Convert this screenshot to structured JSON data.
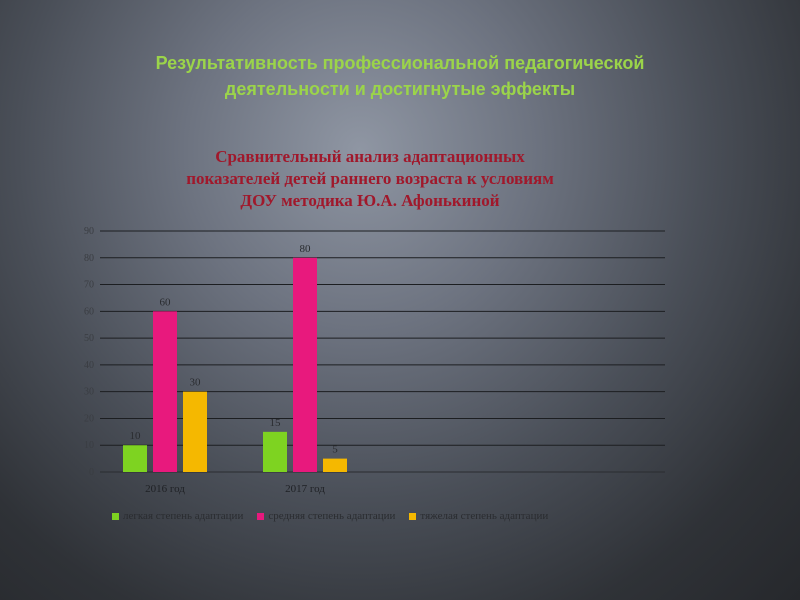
{
  "slide": {
    "title_line1": "Результативность профессиональной педагогической",
    "title_line2": "деятельности и достигнутые эффекты"
  },
  "chart_data": {
    "type": "bar",
    "title_lines": [
      "Сравнительный анализ адаптационных",
      "показателей детей раннего возраста к условиям",
      "ДОУ методика Ю.А. Афонькиной"
    ],
    "categories": [
      "2016 год",
      "2017 год"
    ],
    "series": [
      {
        "name": "легкая степень адаптации",
        "color": "#7ed321",
        "values": [
          10,
          15
        ]
      },
      {
        "name": "средняя степень адаптации",
        "color": "#e8197d",
        "values": [
          60,
          80
        ]
      },
      {
        "name": "тяжелая степень адаптации",
        "color": "#f5b800",
        "values": [
          30,
          5
        ]
      }
    ],
    "ylim": [
      0,
      90
    ],
    "ytick_step": 10,
    "grid": true,
    "legend_position": "bottom",
    "show_data_labels": true
  }
}
